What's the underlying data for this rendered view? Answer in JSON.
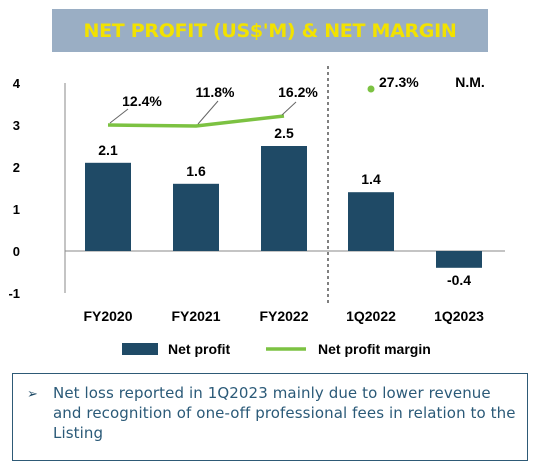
{
  "title": {
    "text": "NET PROFIT (US$'M) & NET MARGIN",
    "background_color": "#9aaec4",
    "text_color": "#f2e200"
  },
  "chart_data": {
    "type": "bar",
    "title": "NET PROFIT (US$'M) & NET MARGIN",
    "categories": [
      "FY2020",
      "FY2021",
      "FY2022",
      "1Q2022",
      "1Q2023"
    ],
    "series": [
      {
        "name": "Net profit",
        "type": "bar",
        "color": "#1f4a66",
        "values": [
          2.1,
          1.6,
          2.5,
          1.4,
          -0.4
        ],
        "labels": [
          "2.1",
          "1.6",
          "2.5",
          "1.4",
          "-0.4"
        ]
      },
      {
        "name": "Net profit margin",
        "type": "line",
        "color": "#7cc242",
        "values": [
          12.4,
          11.8,
          16.2,
          27.3,
          null
        ],
        "labels": [
          "12.4%",
          "11.8%",
          "16.2%",
          "27.3%",
          "N.M."
        ]
      }
    ],
    "yticks": [
      "4",
      "3",
      "2",
      "1",
      "0",
      "-1"
    ],
    "ylim": [
      -1,
      4
    ],
    "legend": {
      "position": "bottom"
    }
  },
  "note": {
    "bullet": "➢",
    "text": "Net loss reported in 1Q2023 mainly due to lower revenue and recognition of one-off professional fees in relation to the Listing",
    "border_color": "#2e5a76"
  }
}
